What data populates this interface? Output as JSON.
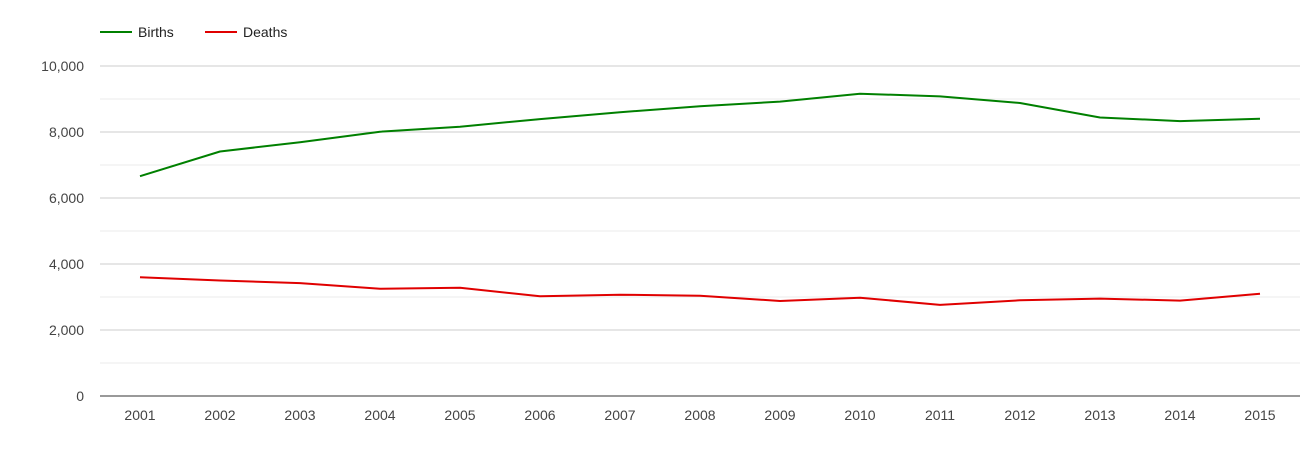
{
  "chart_data": {
    "type": "line",
    "categories": [
      "2001",
      "2002",
      "2003",
      "2004",
      "2005",
      "2006",
      "2007",
      "2008",
      "2009",
      "2010",
      "2011",
      "2012",
      "2013",
      "2014",
      "2015"
    ],
    "series": [
      {
        "name": "Births",
        "color": "#008000",
        "values": [
          6660,
          7410,
          7690,
          8010,
          8160,
          8390,
          8600,
          8780,
          8920,
          9160,
          9080,
          8880,
          8440,
          8330,
          8400
        ]
      },
      {
        "name": "Deaths",
        "color": "#e00000",
        "values": [
          3600,
          3500,
          3420,
          3250,
          3280,
          3020,
          3070,
          3040,
          2880,
          2980,
          2760,
          2900,
          2950,
          2890,
          3100
        ]
      }
    ],
    "ylim": [
      0,
      10000
    ],
    "y_ticks": [
      0,
      2000,
      4000,
      6000,
      8000,
      10000
    ],
    "y_tick_labels": [
      "0",
      "2,000",
      "4,000",
      "6,000",
      "8,000",
      "10,000"
    ],
    "title": "",
    "xlabel": "",
    "ylabel": "",
    "grid": true,
    "legend_position": "top-left"
  }
}
